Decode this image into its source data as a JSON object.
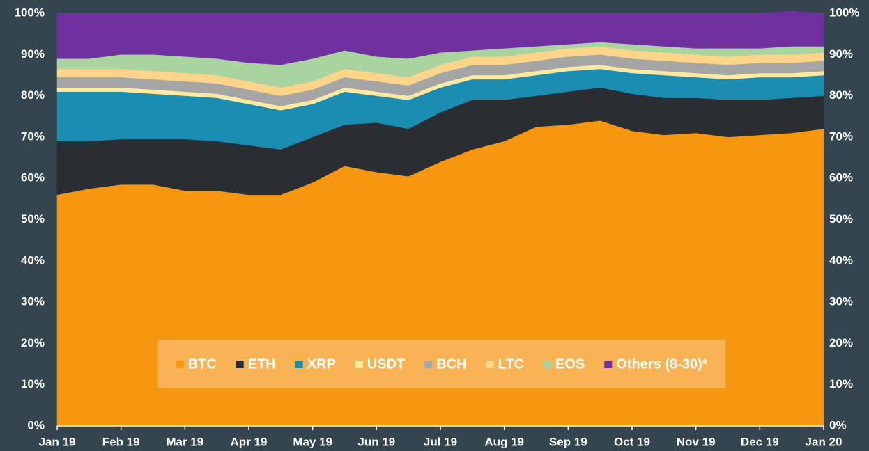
{
  "chart_data": {
    "type": "stacked_area",
    "categories": [
      "Jan 19",
      null,
      "Feb 19",
      null,
      "Mar 19",
      null,
      "Apr 19",
      null,
      "May 19",
      null,
      "Jun 19",
      null,
      "Jul 19",
      null,
      "Aug 19",
      null,
      "Sep 19",
      null,
      "Oct 19",
      null,
      "Nov 19",
      null,
      "Dec 19",
      null,
      "Jan 20"
    ],
    "series": [
      {
        "name": "BTC",
        "color": "#f7960f",
        "values": [
          56,
          57.5,
          58.5,
          58.5,
          57,
          57,
          56,
          56,
          59,
          63,
          61.5,
          60.5,
          64,
          67,
          69,
          72.5,
          73,
          74,
          71.5,
          70.5,
          71,
          70,
          70.5,
          71,
          72
        ]
      },
      {
        "name": "ETH",
        "color": "#2a2d31",
        "values": [
          13,
          11.5,
          11,
          11,
          12.5,
          12,
          12,
          11,
          11,
          10,
          12,
          11.5,
          12,
          12,
          10,
          7.5,
          8,
          8,
          9,
          9,
          8.5,
          9,
          8.5,
          8.5,
          8
        ]
      },
      {
        "name": "XRP",
        "color": "#1a8db0",
        "values": [
          12,
          12,
          11.5,
          11,
          10.5,
          10.5,
          10,
          9.5,
          8,
          8,
          6.5,
          7,
          6,
          5,
          5,
          5,
          5,
          4.5,
          5,
          5.5,
          5,
          5,
          5.5,
          5,
          5
        ]
      },
      {
        "name": "USDT",
        "color": "#fde9a0",
        "values": [
          1,
          1,
          1,
          1,
          1,
          1,
          1,
          1,
          1,
          1,
          1,
          1,
          1,
          1,
          1,
          1,
          1,
          1,
          1,
          1,
          1,
          1,
          1,
          1,
          1
        ]
      },
      {
        "name": "BCH",
        "color": "#a5a5a5",
        "values": [
          2.5,
          2.5,
          2.5,
          2.5,
          2.5,
          2.5,
          2.5,
          2.5,
          2.5,
          2.5,
          2.5,
          2.5,
          2.5,
          2.5,
          2.5,
          2.5,
          2.5,
          2.5,
          2.5,
          2.5,
          2.5,
          2.5,
          2.5,
          2.5,
          2.5
        ]
      },
      {
        "name": "LTC",
        "color": "#fcd48a",
        "values": [
          2,
          2,
          2,
          2,
          2,
          2,
          2,
          2,
          2,
          2,
          2,
          2,
          2,
          2,
          2,
          2,
          2,
          2,
          2,
          2,
          2,
          2,
          2,
          2,
          2
        ]
      },
      {
        "name": "EOS",
        "color": "#a9d4a0",
        "values": [
          2.5,
          2.5,
          3.5,
          4,
          4,
          4,
          4.5,
          5.5,
          5.5,
          4.5,
          4,
          4.5,
          3,
          1.5,
          2,
          1.5,
          1,
          1,
          1.5,
          1.5,
          1.5,
          2,
          1.5,
          2,
          1.5
        ]
      },
      {
        "name": "Others (8-30)*",
        "color": "#7030a0",
        "values": [
          11,
          11,
          10,
          10,
          10.5,
          11,
          12,
          12.5,
          11,
          9,
          10.5,
          11,
          9.5,
          9,
          8.5,
          8,
          7.5,
          7,
          7.5,
          8,
          8.5,
          8.5,
          8.5,
          8.5,
          8
        ]
      }
    ],
    "ylim": [
      0,
      100
    ],
    "yticks": [
      {
        "value": 0,
        "label": "0%"
      },
      {
        "value": 10,
        "label": "10%"
      },
      {
        "value": 20,
        "label": "20%"
      },
      {
        "value": 30,
        "label": "30%"
      },
      {
        "value": 40,
        "label": "40%"
      },
      {
        "value": 50,
        "label": "50%"
      },
      {
        "value": 60,
        "label": "60%"
      },
      {
        "value": 70,
        "label": "70%"
      },
      {
        "value": 80,
        "label": "80%"
      },
      {
        "value": 90,
        "label": "90%"
      },
      {
        "value": 100,
        "label": "100%"
      }
    ],
    "legend": "bottom",
    "legend_background": "#f9b355"
  }
}
